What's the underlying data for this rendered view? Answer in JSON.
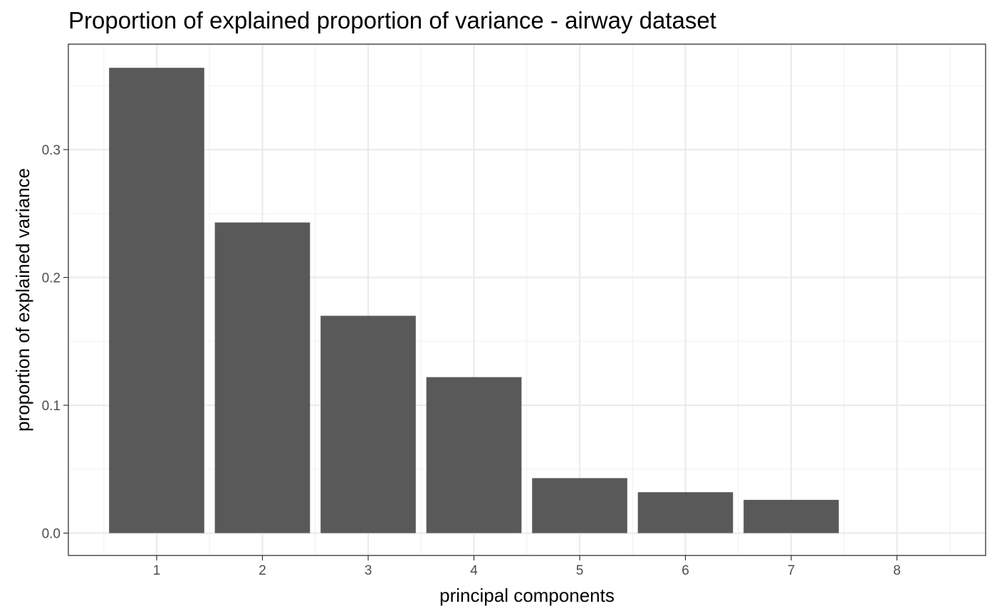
{
  "chart_data": {
    "type": "bar",
    "title": "Proportion of explained proportion of variance - airway dataset",
    "xlabel": "principal components",
    "ylabel": "proportion of explained variance",
    "categories": [
      "1",
      "2",
      "3",
      "4",
      "5",
      "6",
      "7",
      "8"
    ],
    "values": [
      0.364,
      0.243,
      0.17,
      0.122,
      0.043,
      0.032,
      0.026,
      0.0
    ],
    "ylim": [
      -0.0175,
      0.3825
    ],
    "yticks": [
      0.0,
      0.1,
      0.2,
      0.3
    ],
    "ytick_labels": [
      "0.0",
      "0.1",
      "0.2",
      "0.3"
    ],
    "grid": true,
    "bar_color": "#595959",
    "theme": "bw"
  }
}
